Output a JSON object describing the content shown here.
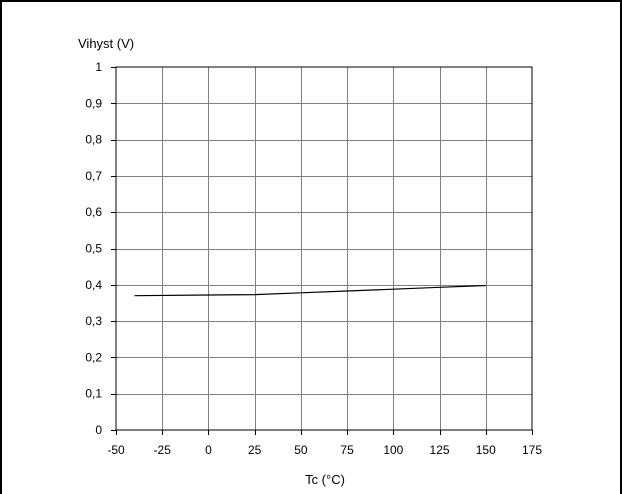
{
  "chart_data": {
    "type": "line",
    "title": "",
    "ylabel": "Vihyst (V)",
    "xlabel": "Tc (°C)",
    "xlim": [
      -50,
      175
    ],
    "ylim": [
      0,
      1
    ],
    "x_ticks": [
      -50,
      -25,
      0,
      25,
      50,
      75,
      100,
      125,
      150,
      175
    ],
    "y_ticks": [
      0,
      0.1,
      0.2,
      0.3,
      0.4,
      0.5,
      0.6,
      0.7,
      0.8,
      0.9,
      1
    ],
    "y_tick_labels": [
      "0",
      "0,1",
      "0,2",
      "0,3",
      "0,4",
      "0,5",
      "0,6",
      "0,7",
      "0,8",
      "0,9",
      "1"
    ],
    "x_tick_labels": [
      "-50",
      "-25",
      "0",
      "25",
      "50",
      "75",
      "100",
      "125",
      "150",
      "175"
    ],
    "grid": true,
    "legend": "none",
    "series": [
      {
        "x": [
          -40,
          0,
          25,
          50,
          75,
          100,
          125,
          150
        ],
        "y": [
          0.37,
          0.372,
          0.373,
          0.378,
          0.383,
          0.388,
          0.393,
          0.398
        ]
      }
    ],
    "colors": {
      "line": "#000000",
      "grid": "#808080"
    }
  }
}
